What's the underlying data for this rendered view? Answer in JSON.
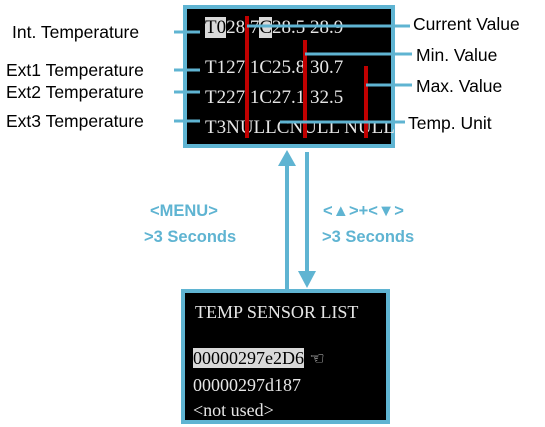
{
  "left_labels": {
    "int_temperature": "Int. Temperature",
    "ext1_temperature": "Ext1 Temperature",
    "ext2_temperature": "Ext2 Temperature",
    "ext3_temperature": "Ext3 Temperature"
  },
  "right_labels": {
    "current_value": "Current Value",
    "min_value": "Min. Value",
    "max_value": "Max. Value",
    "temp_unit": "Temp. Unit"
  },
  "top_screen": {
    "rows": [
      {
        "sensor": "T0",
        "current": "28.7",
        "unit": "C",
        "min": "28.5",
        "max": "28.9"
      },
      {
        "sensor": "T1",
        "current": "27.1",
        "unit": "C",
        "min": "25.8",
        "max": "30.7"
      },
      {
        "sensor": "T2",
        "current": "27.1",
        "unit": "C",
        "min": "27.1",
        "max": "32.5"
      },
      {
        "sensor": "T3",
        "current": "NULL",
        "unit": "C",
        "min": "NULL",
        "max": "NULL"
      }
    ]
  },
  "transitions": {
    "left_key": "<MENU>",
    "left_duration": ">3 Seconds",
    "right_key": "<▲>+<▼>",
    "right_duration": ">3 Seconds"
  },
  "bottom_screen": {
    "title": "TEMP SENSOR LIST",
    "items": [
      "00000297e2D6",
      "00000297d187",
      "<not used>"
    ],
    "selected_index": 0,
    "pointer_icon": "pointing-hand-icon"
  },
  "colors": {
    "accent": "#5fb4d2",
    "screen_bg": "#000000",
    "marker_red": "#c00000",
    "highlight": "#d9d9d9"
  }
}
